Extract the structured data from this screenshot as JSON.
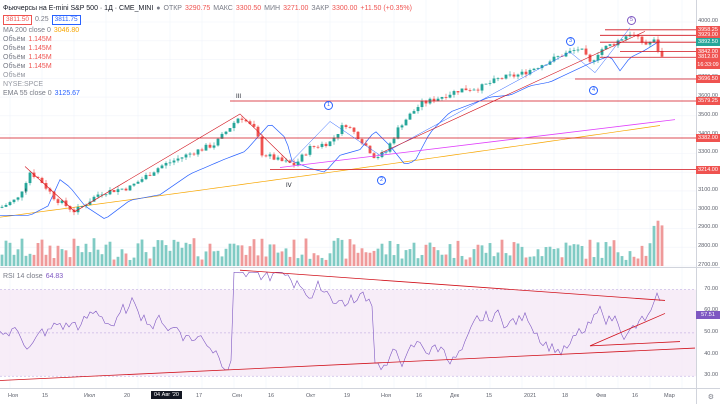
{
  "header": {
    "symbol_title": "Фьючерсы на E-mini S&P 500 · 1Д · CME_MINI",
    "ohlc": [
      {
        "key": "ОТКР",
        "value": "3290.75"
      },
      {
        "key": "МАКС",
        "value": "3300.50"
      },
      {
        "key": "МИН",
        "value": "3271.00"
      },
      {
        "key": "ЗАКР",
        "value": "3300.00"
      }
    ],
    "change": "+11.50 (+0.35%)",
    "bid": "3811.50",
    "spread": "0.25",
    "ask": "3811.75"
  },
  "indicators": [
    {
      "name": "MA 200 close 0",
      "value": "3046.80",
      "color": "#f7a600"
    },
    {
      "name": "Объём",
      "value": "1.145M",
      "color": "#ef5350"
    },
    {
      "name": "Объём",
      "value": "1.145M",
      "color": "#ef5350"
    },
    {
      "name": "Объём",
      "value": "1.145M",
      "color": "#ef5350"
    },
    {
      "name": "Объём",
      "value": "1.145M",
      "color": "#ef5350"
    },
    {
      "name": "Объём",
      "value": "",
      "color": "#9598a1"
    },
    {
      "name": "NYSE:SPCE",
      "value": "",
      "color": "#9598a1"
    },
    {
      "name": "EMA 55 close 0",
      "value": "3125.67",
      "color": "#2962ff"
    }
  ],
  "rsi": {
    "label": "RSI 14 close",
    "value": "64.83",
    "current_tag": "57.51"
  },
  "price_axis": [
    "4000.00",
    "3900.00",
    "3800.00",
    "3700.00",
    "3600.00",
    "3500.00",
    "3400.00",
    "3300.00",
    "3200.00",
    "3100.00",
    "3000.00",
    "2900.00",
    "2800.00",
    "2700.00"
  ],
  "rsi_axis": [
    "70.00",
    "60.00",
    "50.00",
    "40.00",
    "30.00"
  ],
  "price_tags": [
    {
      "label": "3958.25",
      "color": "#ef5350"
    },
    {
      "label": "3929.00",
      "color": "#ef5350"
    },
    {
      "label": "3892.50",
      "color": "#26a69a"
    },
    {
      "label": "3842.00",
      "color": "#ef5350"
    },
    {
      "label": "3812.00",
      "color": "#ef5350"
    },
    {
      "label": "16:33:09",
      "color": "#ef5350"
    },
    {
      "label": "3696.50",
      "color": "#ef5350"
    },
    {
      "label": "3579.25",
      "color": "#ef5350"
    },
    {
      "label": "3382.00",
      "color": "#ef5350"
    },
    {
      "label": "3214.00",
      "color": "#ef5350"
    }
  ],
  "time_axis": [
    "Ноя",
    "15",
    "Июл",
    "20",
    "04 Авг '20",
    "17",
    "Сен",
    "16",
    "Окт",
    "19",
    "Ноя",
    "16",
    "Дек",
    "15",
    "2021",
    "18",
    "Фев",
    "16",
    "Мар"
  ],
  "time_badge": "04 Авг '20",
  "waves": {
    "roman": [
      "I",
      "III",
      "IV"
    ],
    "circled": [
      "1",
      "2",
      "3",
      "4",
      "5"
    ]
  },
  "colors": {
    "up": "#26a69a",
    "down": "#ef5350",
    "ema": "#2962ff",
    "ma200": "#f7a600",
    "trend_red": "#d1111b",
    "magenta": "#e040fb",
    "rsi_line": "#7e57c2"
  },
  "icons": [
    "gear-icon",
    "eye-icon",
    "chevron-down-icon"
  ]
}
